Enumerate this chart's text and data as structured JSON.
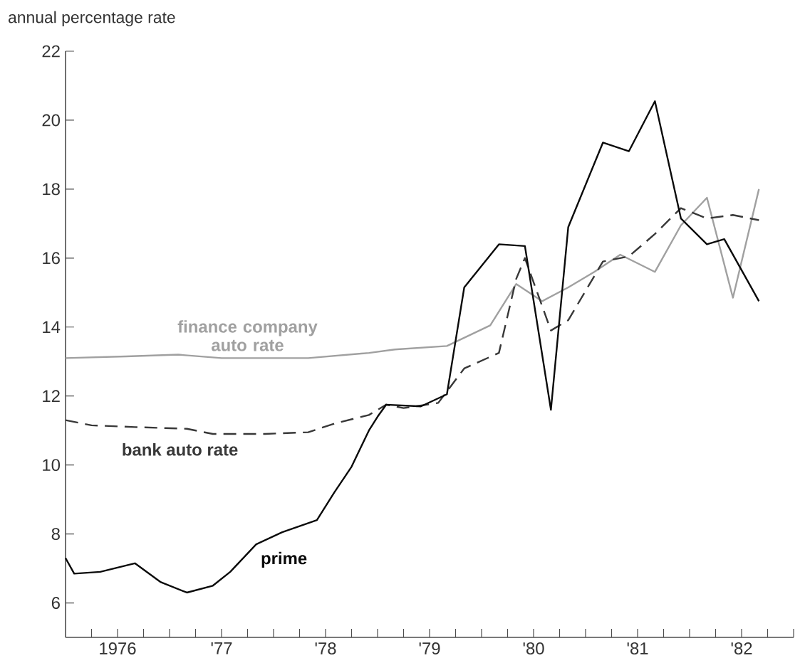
{
  "chart_data": {
    "type": "line",
    "ylabel": "annual percentage rate",
    "xlim": [
      "1976-01",
      "1983-01"
    ],
    "ylim": [
      5,
      22
    ],
    "xticks": [
      {
        "value": "1976-04",
        "label": null
      },
      {
        "value": "1976-07",
        "label": "1976"
      },
      {
        "value": "1976-10",
        "label": null
      },
      {
        "value": "1977-01",
        "label": null
      },
      {
        "value": "1977-04",
        "label": null
      },
      {
        "value": "1977-07",
        "label": "'77"
      },
      {
        "value": "1977-10",
        "label": null
      },
      {
        "value": "1978-01",
        "label": null
      },
      {
        "value": "1978-04",
        "label": null
      },
      {
        "value": "1978-07",
        "label": "'78"
      },
      {
        "value": "1978-10",
        "label": null
      },
      {
        "value": "1979-01",
        "label": null
      },
      {
        "value": "1979-04",
        "label": null
      },
      {
        "value": "1979-07",
        "label": "'79"
      },
      {
        "value": "1979-10",
        "label": null
      },
      {
        "value": "1980-01",
        "label": null
      },
      {
        "value": "1980-04",
        "label": null
      },
      {
        "value": "1980-07",
        "label": "'80"
      },
      {
        "value": "1980-10",
        "label": null
      },
      {
        "value": "1981-01",
        "label": null
      },
      {
        "value": "1981-04",
        "label": null
      },
      {
        "value": "1981-07",
        "label": "'81"
      },
      {
        "value": "1981-10",
        "label": null
      },
      {
        "value": "1982-01",
        "label": null
      },
      {
        "value": "1982-04",
        "label": null
      },
      {
        "value": "1982-07",
        "label": "'82"
      },
      {
        "value": "1982-10",
        "label": null
      },
      {
        "value": "1983-01",
        "label": null
      }
    ],
    "yticks": [
      6,
      8,
      10,
      12,
      14,
      16,
      18,
      20,
      22
    ],
    "grid": false,
    "series": [
      {
        "name": "finance company auto rate",
        "color": "#a0a0a0",
        "line_style": "solid",
        "x": [
          "1976-01",
          "1976-08",
          "1977-02",
          "1977-07",
          "1978-05",
          "1978-12",
          "1979-03",
          "1979-09",
          "1980-02",
          "1980-05",
          "1980-08",
          "1980-11",
          "1981-02",
          "1981-05",
          "1981-09",
          "1981-12",
          "1982-03",
          "1982-06",
          "1982-09"
        ],
        "values": [
          13.1,
          13.15,
          13.2,
          13.1,
          13.1,
          13.25,
          13.35,
          13.45,
          14.05,
          15.25,
          14.75,
          15.15,
          15.6,
          16.1,
          15.6,
          16.95,
          17.75,
          14.85,
          18.0
        ]
      },
      {
        "name": "bank auto rate",
        "color": "#383838",
        "line_style": "dashed",
        "x": [
          "1976-01",
          "1976-04",
          "1976-09",
          "1977-03",
          "1977-06",
          "1977-12",
          "1978-05",
          "1978-08",
          "1978-12",
          "1979-02",
          "1979-04",
          "1979-08",
          "1979-11",
          "1980-03",
          "1980-05",
          "1980-06",
          "1980-09",
          "1980-11",
          "1981-03",
          "1981-06",
          "1981-09",
          "1981-12",
          "1982-03",
          "1982-06",
          "1982-09"
        ],
        "values": [
          11.3,
          11.15,
          11.1,
          11.05,
          10.9,
          10.9,
          10.95,
          11.2,
          11.45,
          11.75,
          11.65,
          11.8,
          12.8,
          13.25,
          15.4,
          16.0,
          13.9,
          14.2,
          15.9,
          16.05,
          16.7,
          17.45,
          17.15,
          17.25,
          17.1
        ]
      },
      {
        "name": "prime",
        "color": "#0a0a0a",
        "line_style": "solid",
        "x": [
          "1976-01",
          "1976-02",
          "1976-05",
          "1976-09",
          "1976-12",
          "1977-03",
          "1977-06",
          "1977-08",
          "1977-11",
          "1978-02",
          "1978-06",
          "1978-08",
          "1978-10",
          "1978-12",
          "1979-01",
          "1979-02",
          "1979-06",
          "1979-09",
          "1979-11",
          "1980-03",
          "1980-06",
          "1980-09",
          "1980-11",
          "1981-03",
          "1981-06",
          "1981-09",
          "1981-12",
          "1982-03",
          "1982-05",
          "1982-09"
        ],
        "values": [
          7.3,
          6.85,
          6.9,
          7.15,
          6.6,
          6.3,
          6.5,
          6.9,
          7.7,
          8.05,
          8.4,
          9.2,
          9.95,
          11.0,
          11.4,
          11.75,
          11.7,
          12.05,
          15.15,
          16.4,
          16.35,
          11.6,
          16.9,
          19.35,
          19.1,
          20.55,
          17.15,
          16.4,
          16.55,
          14.75
        ]
      }
    ]
  }
}
